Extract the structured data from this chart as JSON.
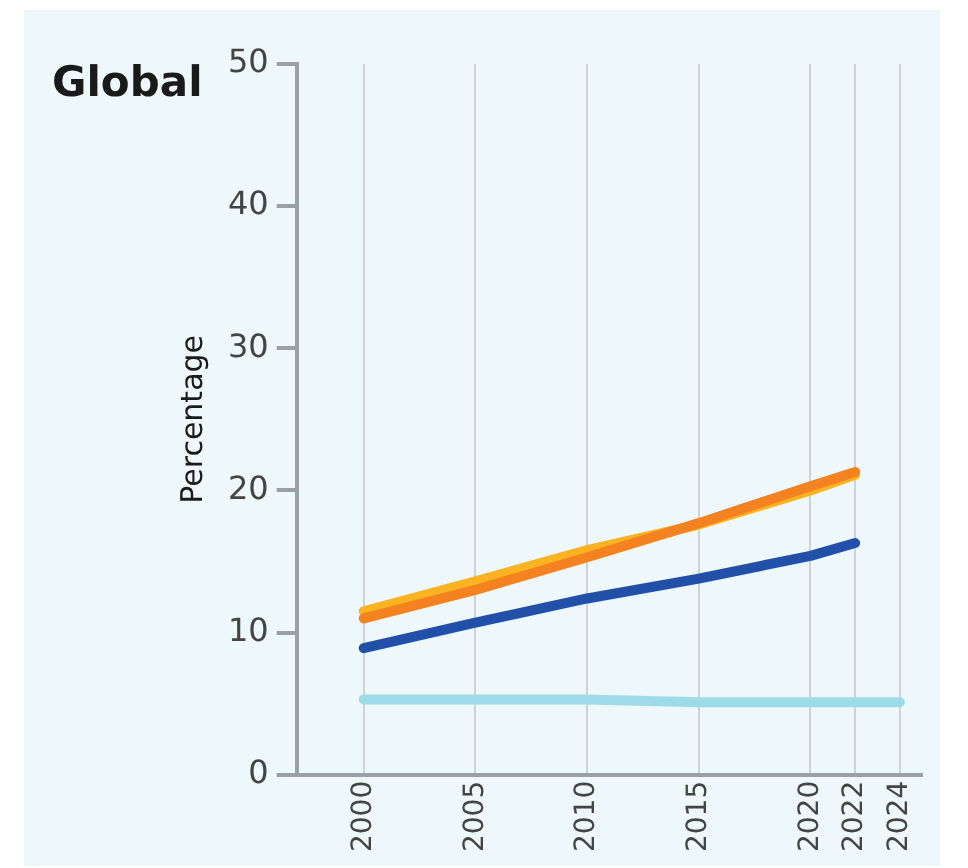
{
  "chart_data": {
    "type": "line",
    "title": "Global",
    "ylabel": "Percentage",
    "xlim": [
      1997,
      2025
    ],
    "xticks": [
      2000,
      2005,
      2010,
      2015,
      2020,
      2022,
      2024
    ],
    "ylim": [
      0,
      50
    ],
    "yticks": [
      0,
      10,
      20,
      30,
      40,
      50
    ],
    "grid": "x",
    "legend": false,
    "marker": "none",
    "line_style": "solid",
    "series": [
      {
        "color": "#f58220",
        "x": [
          2000,
          2005,
          2010,
          2015,
          2020,
          2022
        ],
        "values": [
          11.0,
          13.0,
          15.3,
          17.7,
          20.3,
          21.3
        ]
      },
      {
        "color": "#fbb321",
        "x": [
          2000,
          2005,
          2010,
          2015,
          2020,
          2022
        ],
        "values": [
          11.5,
          13.6,
          15.8,
          17.6,
          20.0,
          21.1
        ]
      },
      {
        "color": "#2250a8",
        "x": [
          2000,
          2005,
          2010,
          2015,
          2020,
          2022
        ],
        "values": [
          8.9,
          10.7,
          12.4,
          13.8,
          15.4,
          16.3
        ]
      },
      {
        "color": "#9edbe8",
        "x": [
          2000,
          2005,
          2010,
          2015,
          2020,
          2022,
          2024
        ],
        "values": [
          5.3,
          5.3,
          5.3,
          5.1,
          5.1,
          5.1,
          5.1
        ]
      }
    ]
  }
}
